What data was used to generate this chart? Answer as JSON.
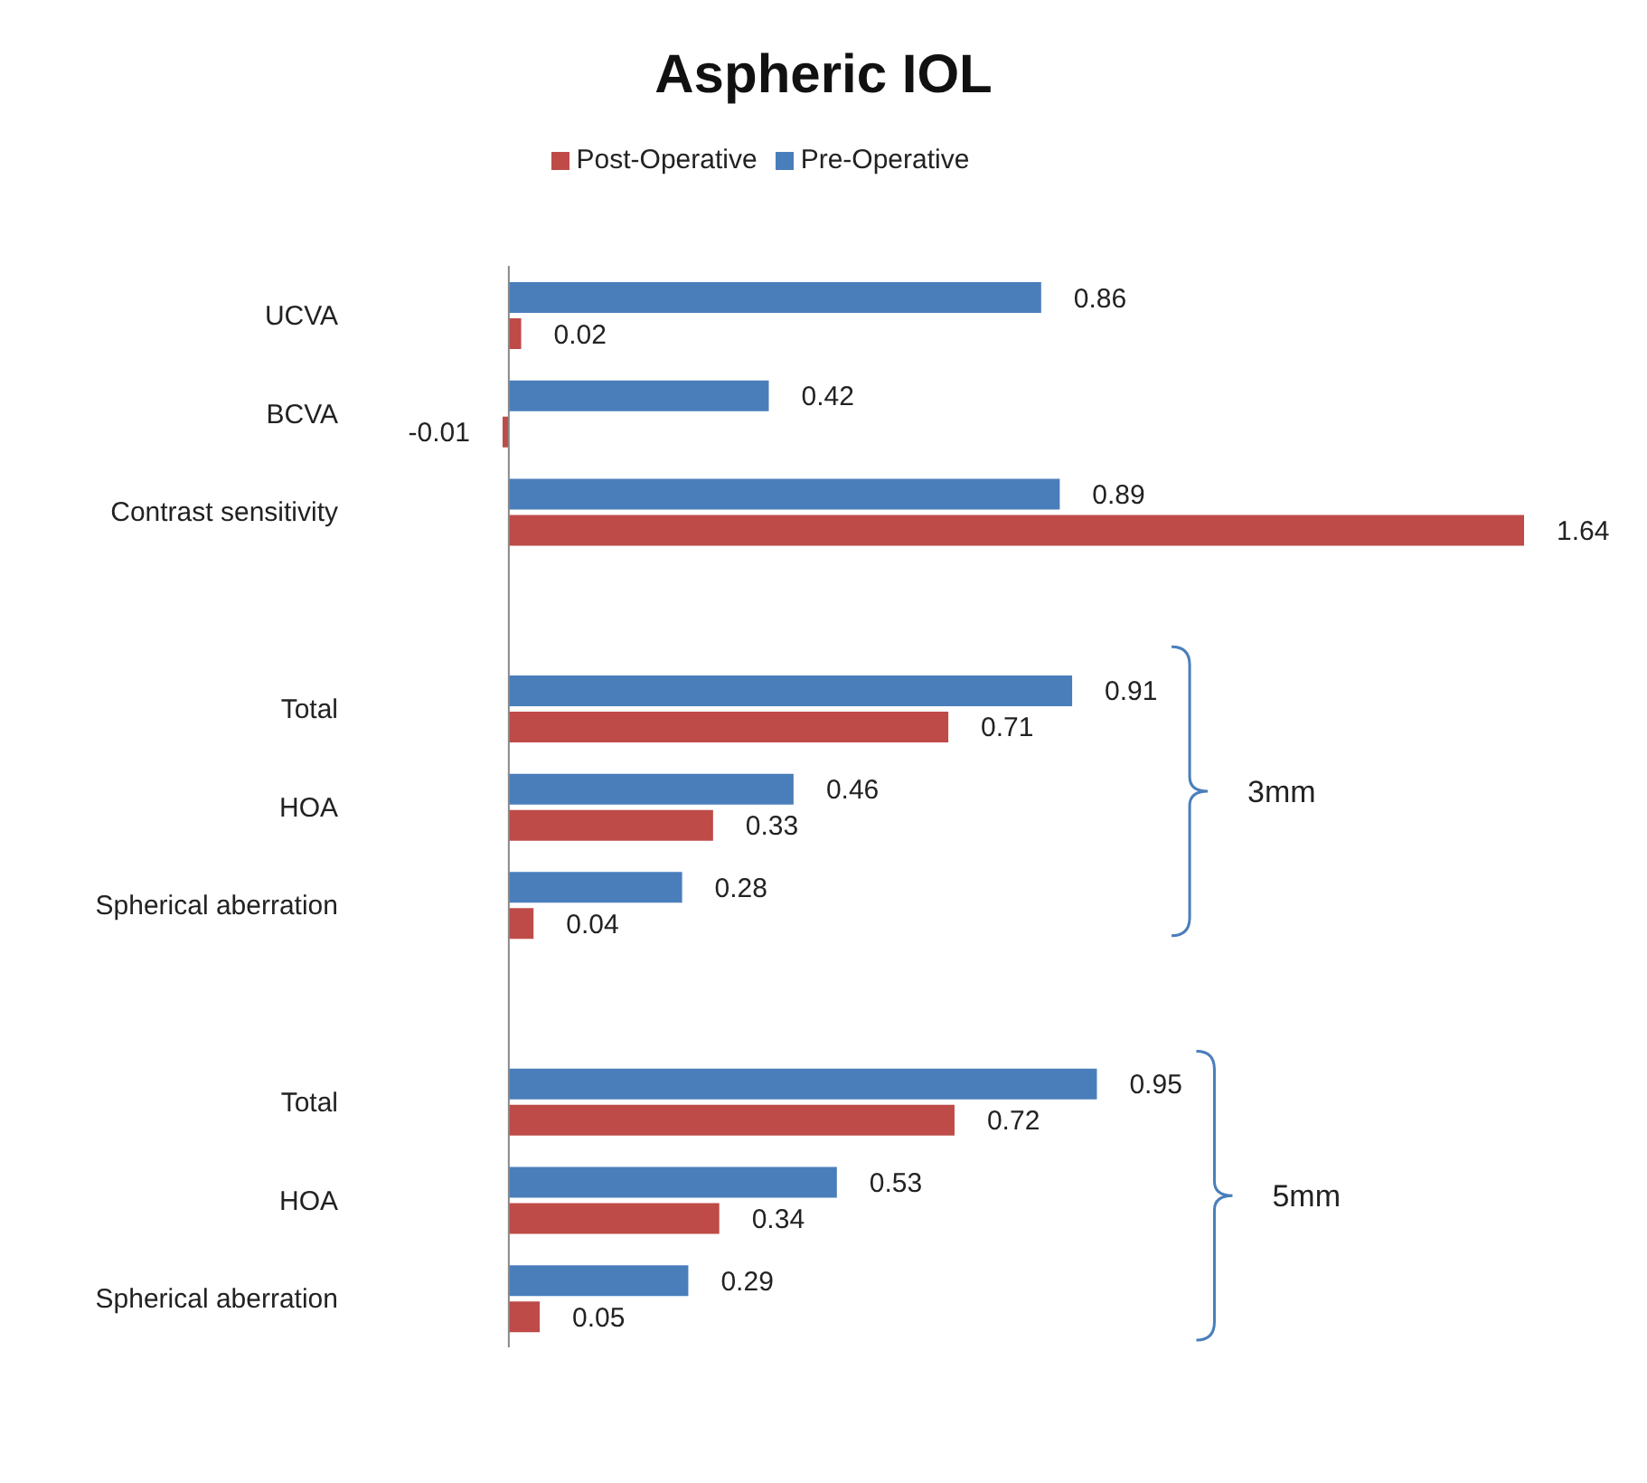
{
  "chart_data": {
    "type": "bar",
    "title": "Aspheric IOL",
    "orientation": "horizontal",
    "categories": [
      "UCVA",
      "BCVA",
      "Contrast sensitivity",
      null,
      "Total",
      "HOA",
      "Spherical aberration",
      null,
      "Total",
      "HOA",
      "Spherical aberration"
    ],
    "series": [
      {
        "name": "Pre-Operative",
        "color": "#4a7ebb",
        "values": [
          0.86,
          0.42,
          0.89,
          null,
          0.91,
          0.46,
          0.28,
          null,
          0.95,
          0.53,
          0.29
        ]
      },
      {
        "name": "Post-Operative",
        "color": "#be4b48",
        "values": [
          0.02,
          -0.01,
          1.64,
          null,
          0.71,
          0.33,
          0.04,
          null,
          0.72,
          0.34,
          0.05
        ]
      }
    ],
    "data_labels": true,
    "legend": "top",
    "grid": false,
    "annotations": [
      "3mm",
      "5mm"
    ]
  }
}
